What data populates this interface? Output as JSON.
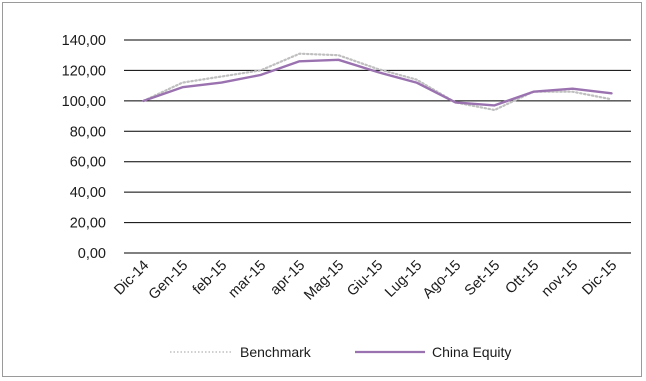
{
  "chart_data": {
    "type": "line",
    "title": "",
    "xlabel": "",
    "ylabel": "",
    "ylim": [
      0,
      140
    ],
    "yticks": [
      0,
      20,
      40,
      60,
      80,
      100,
      120,
      140
    ],
    "ytick_labels": [
      "0,00",
      "20,00",
      "40,00",
      "60,00",
      "80,00",
      "100,00",
      "120,00",
      "140,00"
    ],
    "categories": [
      "Dic-14",
      "Gen-15",
      "feb-15",
      "mar-15",
      "apr-15",
      "Mag-15",
      "Giu-15",
      "Lug-15",
      "Ago-15",
      "Set-15",
      "Ott-15",
      "nov-15",
      "Dic-15"
    ],
    "grid": true,
    "legend_position": "bottom",
    "series": [
      {
        "name": "Benchmark",
        "color": "#bfbfbf",
        "style": "dotted",
        "values": [
          100,
          112,
          116,
          120,
          131,
          130,
          121,
          114,
          99,
          94,
          106,
          106,
          101
        ]
      },
      {
        "name": "China Equity",
        "color": "#9b72b0",
        "style": "solid",
        "values": [
          100,
          109,
          112,
          117,
          126,
          127,
          119,
          112,
          99,
          97,
          106,
          108,
          105
        ]
      }
    ]
  }
}
